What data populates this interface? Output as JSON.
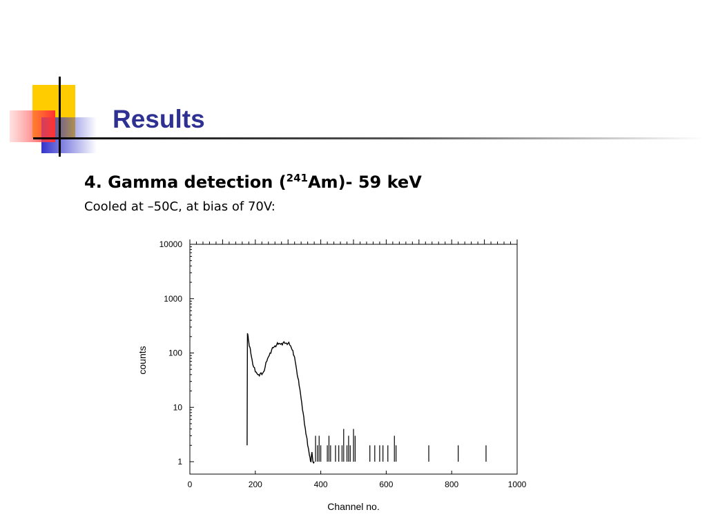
{
  "slide": {
    "title": "Results",
    "heading_prefix": "4. Gamma detection (",
    "heading_superscript": "241",
    "heading_suffix": "Am)- 59 keV",
    "caption": "Cooled at –50C, at bias of 70V:"
  },
  "colors": {
    "title": "#2e3192",
    "deco_yellow": "#ffcc00",
    "deco_blue": "#3333cc",
    "deco_red": "#ff4a4a",
    "line": "#000000"
  },
  "chart_data": {
    "type": "line",
    "title": "",
    "xlabel": "Channel no.",
    "ylabel": "counts",
    "xlim": [
      0,
      1000
    ],
    "ylim": [
      1,
      10000
    ],
    "yscale": "log",
    "x_ticks": [
      0,
      200,
      400,
      600,
      800,
      1000
    ],
    "x_tick_labels": [
      "0",
      "200",
      "400",
      "600",
      "800",
      "1000"
    ],
    "y_ticks": [
      1,
      10,
      100,
      1000,
      10000
    ],
    "y_tick_labels": [
      "1",
      "10",
      "100",
      "1000",
      "10000"
    ],
    "grid": false,
    "legend": "none",
    "series": [
      {
        "x": [
          175,
          176,
          178,
          180,
          183,
          186,
          190,
          195,
          200,
          205,
          210,
          215,
          220,
          225,
          230,
          235,
          240,
          245,
          250,
          255,
          260,
          265,
          270,
          275,
          280,
          285,
          290,
          295,
          300,
          305,
          310,
          315,
          318,
          322,
          326,
          330,
          334,
          338,
          342,
          346,
          350,
          353,
          356,
          360,
          364,
          367,
          370,
          373,
          376,
          380
        ],
        "y": [
          2,
          230,
          200,
          160,
          130,
          100,
          75,
          55,
          45,
          42,
          40,
          42,
          40,
          45,
          55,
          70,
          85,
          100,
          115,
          125,
          135,
          140,
          145,
          148,
          150,
          155,
          150,
          152,
          150,
          140,
          125,
          110,
          90,
          70,
          50,
          35,
          25,
          18,
          12,
          8,
          5,
          4,
          3,
          2,
          1.5,
          1.2,
          1.0,
          1.5,
          1.0,
          1.0
        ]
      }
    ],
    "sparse_counts": [
      {
        "x": 384,
        "y": 3
      },
      {
        "x": 390,
        "y": 2
      },
      {
        "x": 395,
        "y": 3
      },
      {
        "x": 400,
        "y": 2
      },
      {
        "x": 410,
        "y": 1
      },
      {
        "x": 420,
        "y": 2
      },
      {
        "x": 425,
        "y": 3
      },
      {
        "x": 430,
        "y": 2
      },
      {
        "x": 435,
        "y": 1
      },
      {
        "x": 445,
        "y": 2
      },
      {
        "x": 455,
        "y": 2
      },
      {
        "x": 465,
        "y": 2
      },
      {
        "x": 470,
        "y": 4
      },
      {
        "x": 480,
        "y": 2
      },
      {
        "x": 485,
        "y": 3
      },
      {
        "x": 490,
        "y": 2
      },
      {
        "x": 500,
        "y": 4
      },
      {
        "x": 505,
        "y": 3
      },
      {
        "x": 550,
        "y": 2
      },
      {
        "x": 565,
        "y": 2
      },
      {
        "x": 580,
        "y": 2
      },
      {
        "x": 590,
        "y": 2
      },
      {
        "x": 600,
        "y": 1
      },
      {
        "x": 605,
        "y": 2
      },
      {
        "x": 625,
        "y": 3
      },
      {
        "x": 630,
        "y": 2
      },
      {
        "x": 660,
        "y": 1
      },
      {
        "x": 700,
        "y": 1
      },
      {
        "x": 730,
        "y": 2
      },
      {
        "x": 745,
        "y": 1
      },
      {
        "x": 820,
        "y": 2
      },
      {
        "x": 905,
        "y": 2
      },
      {
        "x": 910,
        "y": 1
      }
    ]
  }
}
